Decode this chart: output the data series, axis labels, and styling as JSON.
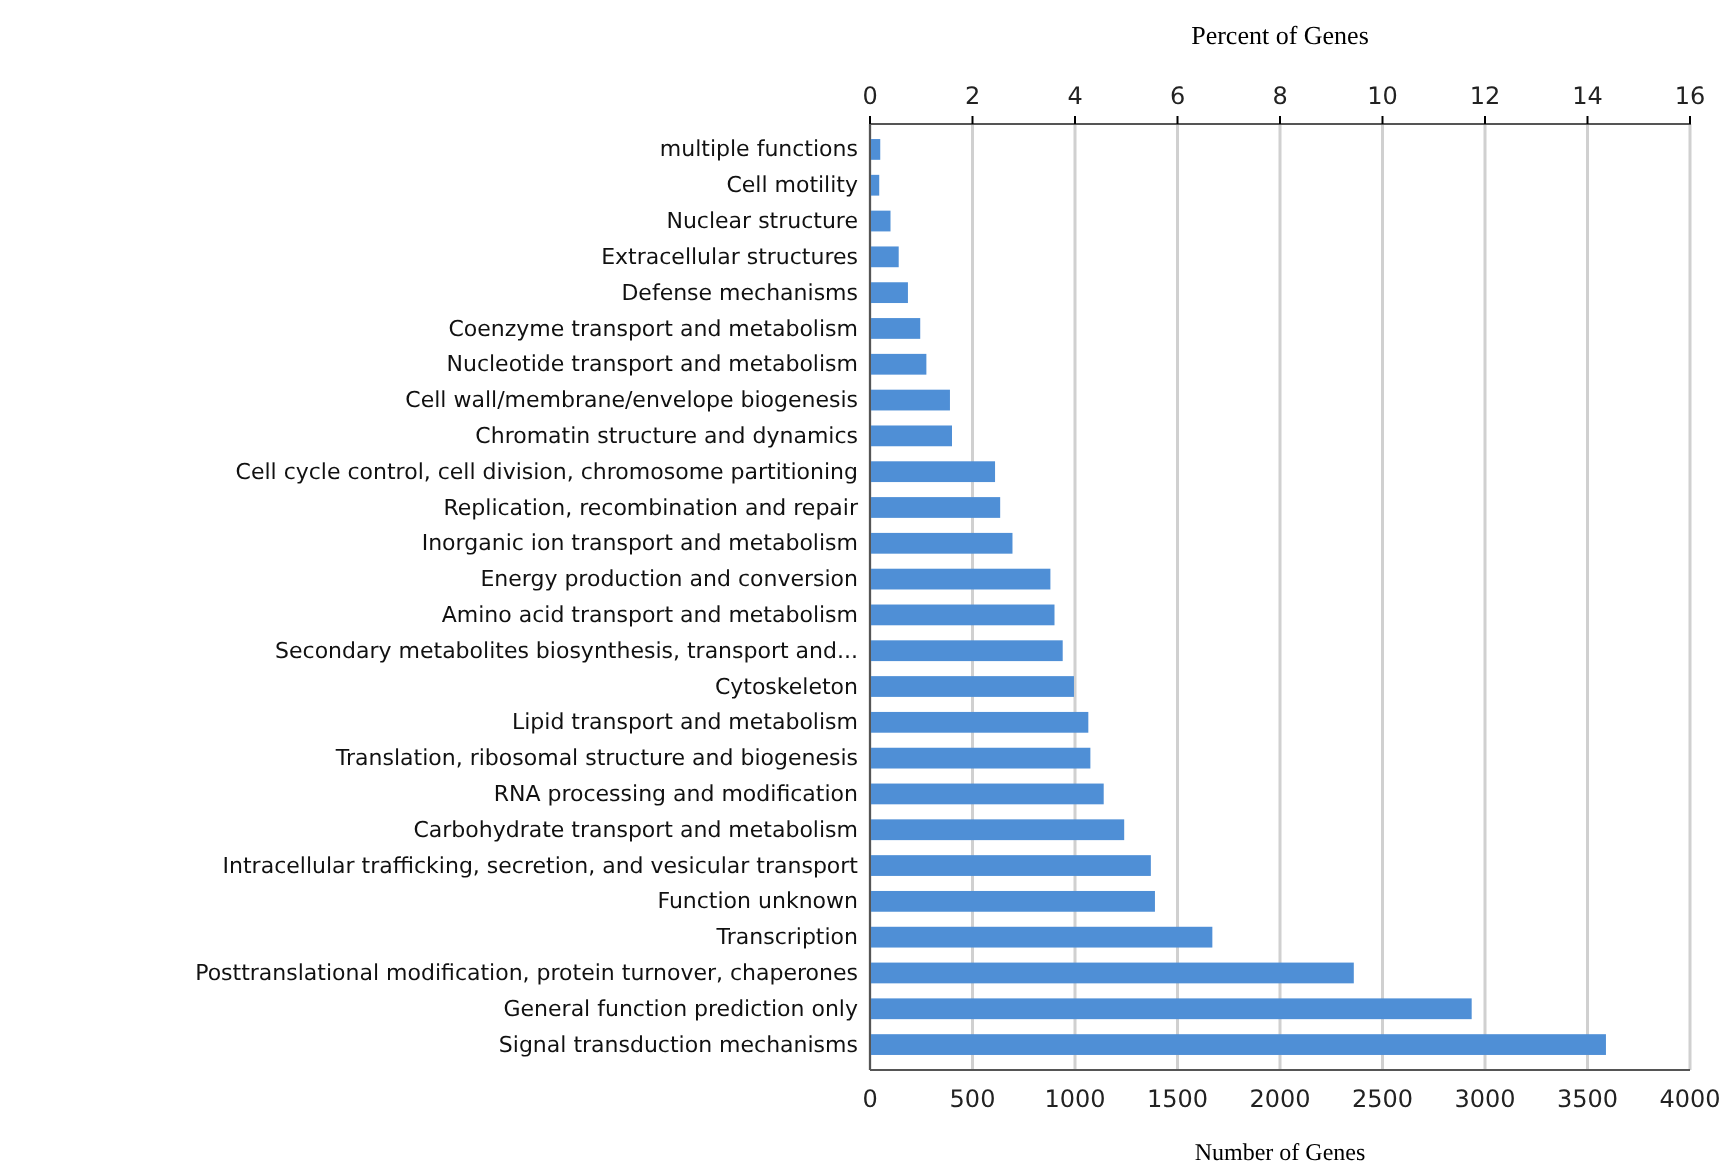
{
  "chart_data": {
    "type": "bar",
    "orientation": "horizontal",
    "xlabel": "Number of Genes",
    "x2label": "Percent of Genes",
    "categories": [
      "multiple functions",
      "Cell motility",
      "Nuclear structure",
      "Extracellular structures",
      "Defense mechanisms",
      "Coenzyme transport and metabolism",
      "Nucleotide transport and metabolism",
      "Cell wall/membrane/envelope biogenesis",
      "Chromatin structure and dynamics",
      "Cell cycle control, cell division, chromosome partitioning",
      "Replication, recombination and repair",
      "Inorganic ion transport and metabolism",
      "Energy production and conversion",
      "Amino acid transport and metabolism",
      "Secondary metabolites biosynthesis, transport and...",
      "Cytoskeleton",
      "Lipid transport and metabolism",
      "Translation, ribosomal structure and biogenesis",
      "RNA processing and modification",
      "Carbohydrate transport and metabolism",
      "Intracellular trafficking, secretion, and vesicular transport",
      "Function unknown",
      "Transcription",
      "Posttranslational modification, protein turnover, chaperones",
      "General function prediction only",
      "Signal transduction mechanisms"
    ],
    "values": [
      50,
      45,
      100,
      140,
      185,
      245,
      275,
      390,
      400,
      610,
      635,
      695,
      880,
      900,
      940,
      995,
      1065,
      1075,
      1140,
      1240,
      1370,
      1390,
      1670,
      2360,
      2935,
      3590
    ],
    "color": "#4f8fd6",
    "xlim": [
      0,
      4000
    ],
    "xticks": [
      0,
      500,
      1000,
      1500,
      2000,
      2500,
      3000,
      3500,
      4000
    ],
    "x2lim": [
      0,
      16
    ],
    "x2ticks": [
      0,
      2,
      4,
      6,
      8,
      10,
      12,
      14,
      16
    ],
    "grid": "x"
  }
}
